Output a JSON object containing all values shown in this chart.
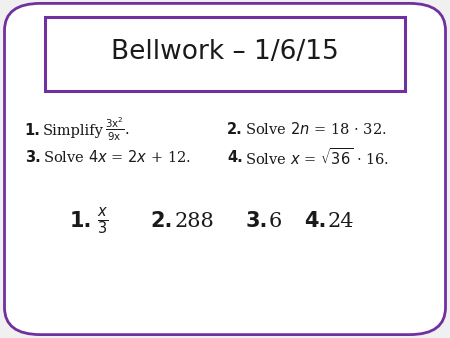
{
  "title": "Bellwork – 1/6/15",
  "bg_color": "#f0f0f0",
  "outer_border_color": "#7030A0",
  "inner_border_color": "#7030A0",
  "text_color": "#1a1a1a",
  "purple_color": "#7030A0",
  "q1_bold": "1.",
  "q2_bold": "2.",
  "q3_bold": "3.",
  "q4_bold": "4.",
  "ans2": "288",
  "ans3": "6",
  "ans4": "24",
  "figw": 4.5,
  "figh": 3.38,
  "dpi": 100
}
